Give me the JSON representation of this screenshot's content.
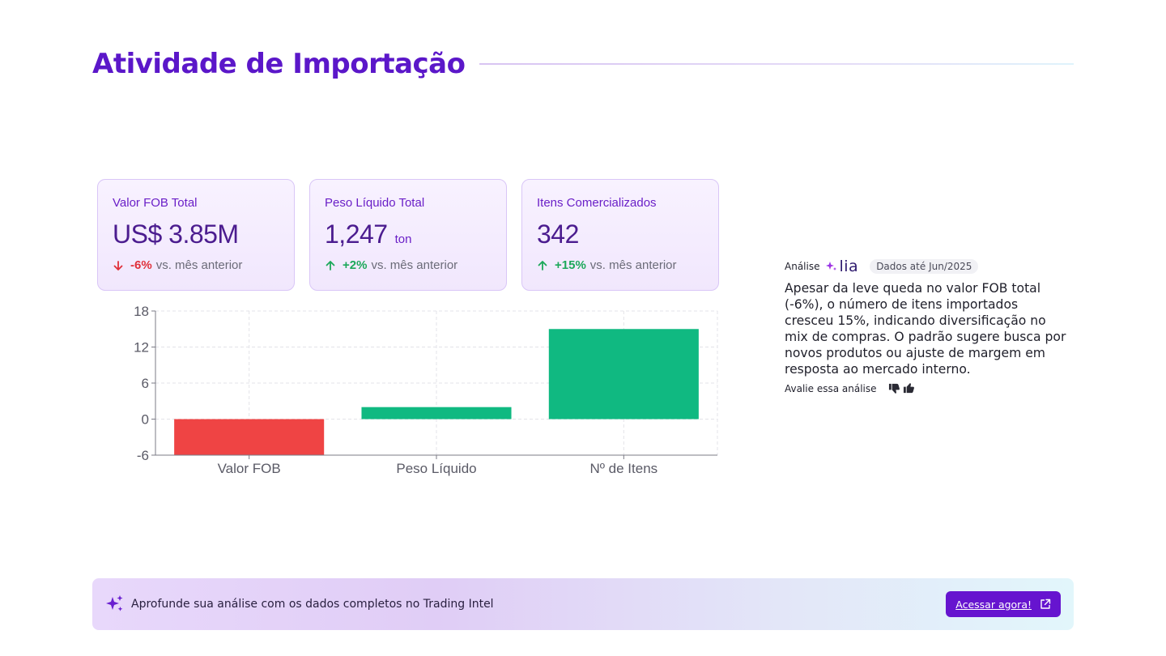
{
  "header": {
    "title": "Atividade de Importação"
  },
  "kpis": [
    {
      "label": "Valor FOB Total",
      "value": "US$ 3.85M",
      "unit": "",
      "delta": "-6%",
      "delta_direction": "down",
      "comparison": "vs. mês anterior"
    },
    {
      "label": "Peso Líquido Total",
      "value": "1,247",
      "unit": "ton",
      "delta": "+2%",
      "delta_direction": "up",
      "comparison": "vs. mês anterior"
    },
    {
      "label": "Itens Comercializados",
      "value": "342",
      "unit": "",
      "delta": "+15%",
      "delta_direction": "up",
      "comparison": "vs. mês anterior"
    }
  ],
  "chart_data": {
    "type": "bar",
    "title": "",
    "xlabel": "",
    "ylabel": "",
    "categories": [
      "Valor FOB",
      "Peso Líquido",
      "Nº de Itens"
    ],
    "values": [
      -6,
      2,
      15
    ],
    "ylim": [
      -6,
      18
    ],
    "yticks": [
      -6,
      0,
      6,
      12,
      18
    ],
    "grid": true,
    "colors": {
      "positive": "#10b981",
      "negative": "#ef4444"
    }
  },
  "analysis": {
    "label": "Análise",
    "brand": "lia",
    "badge": "Dados até Jun/2025",
    "text": "Apesar da leve queda no valor FOB total (-6%), o número de itens importados cresceu 15%, indicando diversificação no mix de compras. O padrão sugere busca por novos produtos ou ajuste de margem em resposta ao mercado interno.",
    "rate_label": "Avalie essa análise"
  },
  "banner": {
    "text": "Aprofunde sua análise com os dados completos no Trading Intel",
    "cta_label": "Acessar agora!"
  },
  "colors": {
    "accent": "#5b17c9",
    "cta": "#6614cf",
    "positive": "#1ca85a",
    "negative": "#e0303a"
  },
  "icons": {
    "delta_down": "arrow-down-icon",
    "delta_up": "arrow-up-icon",
    "sparkle": "sparkle-icon",
    "thumbs_down": "thumbs-down-icon",
    "thumbs_up": "thumbs-up-icon",
    "external": "external-link-icon"
  }
}
